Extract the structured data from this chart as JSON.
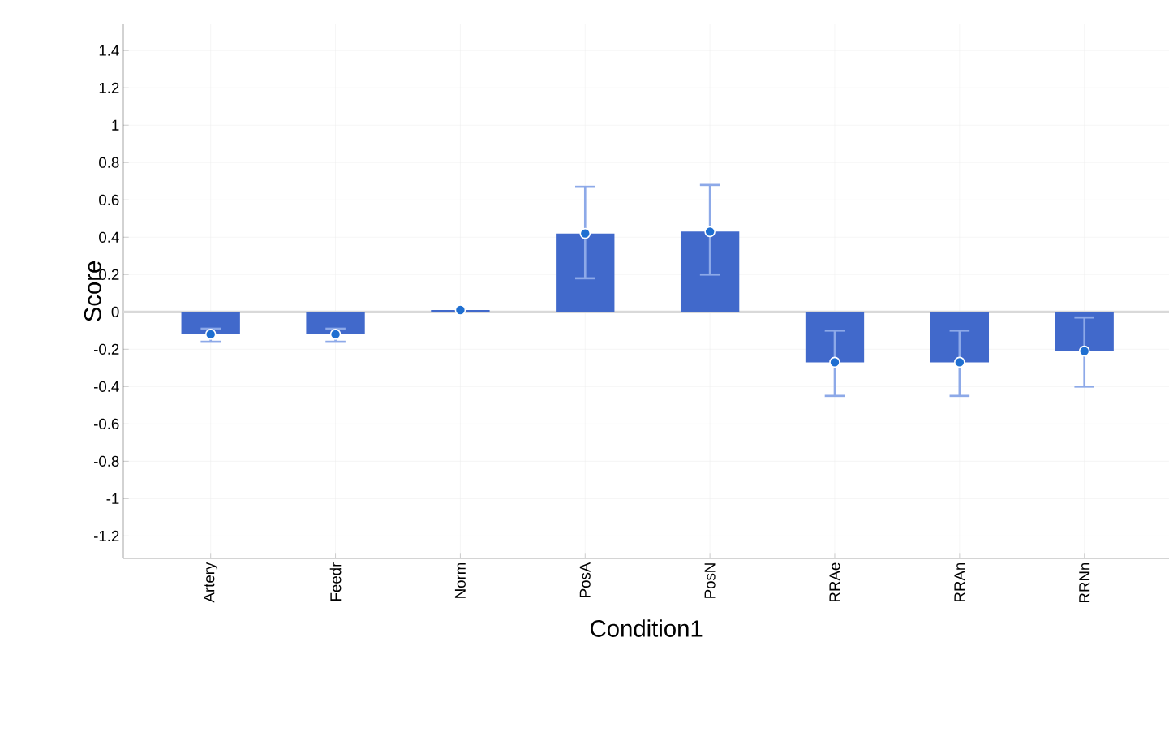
{
  "chart_data": {
    "type": "bar",
    "xlabel": "Condition1",
    "ylabel": "Score",
    "categories": [
      "Artery",
      "Feedr",
      "Norm",
      "PosA",
      "PosN",
      "RRAe",
      "RRAn",
      "RRNn"
    ],
    "series": [
      {
        "color": "#4169cb",
        "values": [
          -0.12,
          -0.12,
          0.01,
          0.42,
          0.43,
          -0.27,
          -0.27,
          -0.21
        ],
        "errors": [
          [
            -0.16,
            -0.09
          ],
          [
            -0.16,
            -0.09
          ],
          null,
          [
            0.18,
            0.67
          ],
          [
            0.2,
            0.68
          ],
          [
            -0.45,
            -0.1
          ],
          [
            -0.45,
            -0.1
          ],
          [
            -0.4,
            -0.03
          ]
        ]
      },
      {
        "type": "scatter",
        "color": "#1f6fd1",
        "x": [
          "Artery",
          "Feedr",
          "Norm",
          "PosA",
          "PosN",
          "RRAe",
          "RRAn",
          "RRNn"
        ],
        "values": [
          -0.12,
          -0.12,
          0.01,
          0.42,
          0.43,
          -0.27,
          -0.27,
          -0.21
        ]
      }
    ],
    "marker": "circle",
    "ylim": [
      -1.32,
      1.54
    ],
    "yticks": [
      -1.2,
      -1,
      -0.8,
      -0.6,
      -0.4,
      -0.2,
      0,
      0.2,
      0.4,
      0.6,
      0.8,
      1,
      1.2,
      1.4
    ],
    "grid": true
  }
}
